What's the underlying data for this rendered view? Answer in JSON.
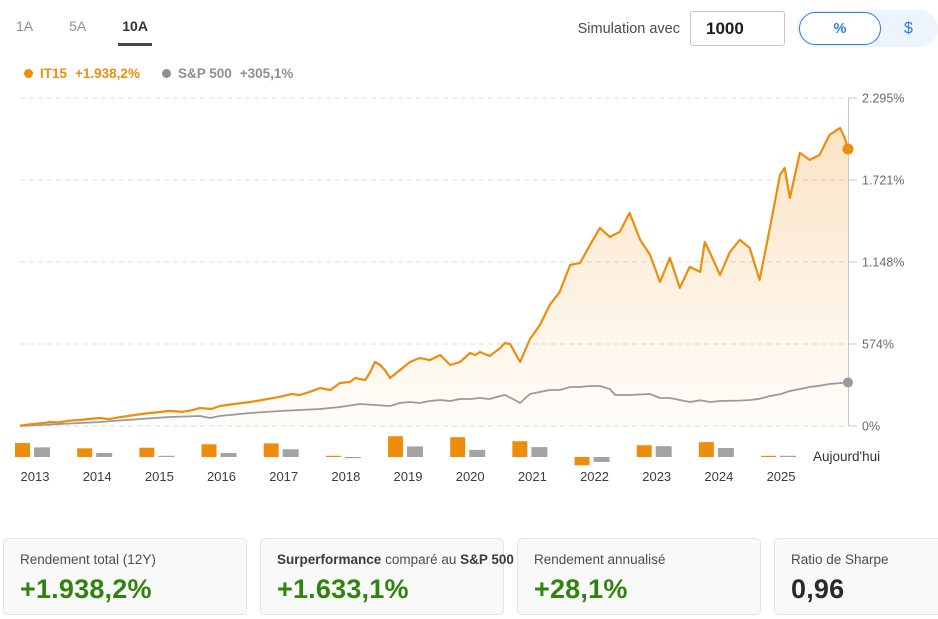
{
  "header": {
    "tabs": [
      {
        "label": "1A",
        "active": false
      },
      {
        "label": "5A",
        "active": false
      },
      {
        "label": "10A",
        "active": true
      }
    ],
    "simulation_label": "Simulation avec",
    "amount_value": "1000",
    "unit_toggle": {
      "percent": "%",
      "dollar": "$",
      "selected": "percent"
    }
  },
  "legend": {
    "series": [
      {
        "name": "IT15",
        "change": "+1.938,2%",
        "color": "#ee8d0b"
      },
      {
        "name": "S&P 500",
        "change": "+305,1%",
        "color": "#8f8f8f"
      }
    ]
  },
  "chart_data": {
    "type": "line",
    "xlabel": "",
    "ylabel": "",
    "xlim": [
      2013.0,
      2025.55
    ],
    "ylim": [
      0,
      2295
    ],
    "grid": "horizontal-dashed",
    "legend_position": "top-left",
    "y_ticks": [
      {
        "value": 2295,
        "label": "2.295%"
      },
      {
        "value": 1721,
        "label": "1.721%"
      },
      {
        "value": 1148,
        "label": "1.148%"
      },
      {
        "value": 574,
        "label": "574%"
      },
      {
        "value": 0,
        "label": "0%"
      }
    ],
    "x_labels": [
      "2013",
      "2014",
      "2015",
      "2016",
      "2017",
      "2018",
      "2019",
      "2020",
      "2021",
      "2022",
      "2023",
      "2024",
      "2025"
    ],
    "today_label": "Aujourd'hui",
    "series": [
      {
        "name": "IT15",
        "color": "#ee8d0b",
        "end_value_pct": 1938.2,
        "points": [
          [
            2013.0,
            2
          ],
          [
            2013.12,
            10
          ],
          [
            2013.25,
            16
          ],
          [
            2013.37,
            22
          ],
          [
            2013.45,
            28
          ],
          [
            2013.6,
            26
          ],
          [
            2013.75,
            38
          ],
          [
            2013.91,
            42
          ],
          [
            2014.06,
            50
          ],
          [
            2014.21,
            56
          ],
          [
            2014.35,
            48
          ],
          [
            2014.52,
            62
          ],
          [
            2014.75,
            78
          ],
          [
            2014.97,
            91
          ],
          [
            2015.12,
            98
          ],
          [
            2015.27,
            106
          ],
          [
            2015.45,
            99
          ],
          [
            2015.6,
            110
          ],
          [
            2015.73,
            126
          ],
          [
            2015.9,
            119
          ],
          [
            2016.03,
            140
          ],
          [
            2016.25,
            154
          ],
          [
            2016.49,
            168
          ],
          [
            2016.64,
            180
          ],
          [
            2016.79,
            192
          ],
          [
            2016.94,
            204
          ],
          [
            2017.12,
            224
          ],
          [
            2017.24,
            216
          ],
          [
            2017.4,
            240
          ],
          [
            2017.55,
            266
          ],
          [
            2017.7,
            251
          ],
          [
            2017.85,
            301
          ],
          [
            2018.0,
            308
          ],
          [
            2018.08,
            336
          ],
          [
            2018.23,
            321
          ],
          [
            2018.3,
            371
          ],
          [
            2018.38,
            448
          ],
          [
            2018.46,
            427
          ],
          [
            2018.53,
            392
          ],
          [
            2018.61,
            336
          ],
          [
            2018.76,
            392
          ],
          [
            2018.91,
            448
          ],
          [
            2019.06,
            476
          ],
          [
            2019.21,
            461
          ],
          [
            2019.37,
            497
          ],
          [
            2019.52,
            427
          ],
          [
            2019.67,
            448
          ],
          [
            2019.82,
            511
          ],
          [
            2019.9,
            497
          ],
          [
            2019.97,
            518
          ],
          [
            2020.12,
            490
          ],
          [
            2020.28,
            546
          ],
          [
            2020.35,
            581
          ],
          [
            2020.43,
            573
          ],
          [
            2020.58,
            448
          ],
          [
            2020.73,
            609
          ],
          [
            2020.88,
            707
          ],
          [
            2021.03,
            847
          ],
          [
            2021.18,
            938
          ],
          [
            2021.34,
            1127
          ],
          [
            2021.49,
            1141
          ],
          [
            2021.64,
            1267
          ],
          [
            2021.79,
            1386
          ],
          [
            2021.94,
            1323
          ],
          [
            2022.09,
            1358
          ],
          [
            2022.24,
            1491
          ],
          [
            2022.4,
            1302
          ],
          [
            2022.55,
            1197
          ],
          [
            2022.7,
            1008
          ],
          [
            2022.85,
            1176
          ],
          [
            2023.0,
            966
          ],
          [
            2023.15,
            1113
          ],
          [
            2023.31,
            1078
          ],
          [
            2023.38,
            1288
          ],
          [
            2023.46,
            1211
          ],
          [
            2023.61,
            1057
          ],
          [
            2023.76,
            1218
          ],
          [
            2023.91,
            1302
          ],
          [
            2024.06,
            1246
          ],
          [
            2024.21,
            1022
          ],
          [
            2024.37,
            1393
          ],
          [
            2024.52,
            1757
          ],
          [
            2024.59,
            1806
          ],
          [
            2024.67,
            1596
          ],
          [
            2024.82,
            1911
          ],
          [
            2024.97,
            1862
          ],
          [
            2025.12,
            1897
          ],
          [
            2025.27,
            2037
          ],
          [
            2025.43,
            2086
          ],
          [
            2025.5,
            2016
          ],
          [
            2025.55,
            1938
          ]
        ]
      },
      {
        "name": "S&P 500",
        "color": "#9a9a9a",
        "end_value_pct": 305.1,
        "points": [
          [
            2013.0,
            0
          ],
          [
            2013.61,
            14
          ],
          [
            2014.21,
            28
          ],
          [
            2014.82,
            49
          ],
          [
            2015.27,
            63
          ],
          [
            2015.73,
            70
          ],
          [
            2015.88,
            56
          ],
          [
            2016.03,
            70
          ],
          [
            2016.49,
            91
          ],
          [
            2016.94,
            105
          ],
          [
            2017.24,
            112
          ],
          [
            2017.55,
            119
          ],
          [
            2017.85,
            133
          ],
          [
            2018.15,
            154
          ],
          [
            2018.38,
            147
          ],
          [
            2018.61,
            140
          ],
          [
            2018.76,
            161
          ],
          [
            2018.91,
            168
          ],
          [
            2019.06,
            161
          ],
          [
            2019.21,
            175
          ],
          [
            2019.37,
            182
          ],
          [
            2019.52,
            175
          ],
          [
            2019.67,
            189
          ],
          [
            2019.82,
            189
          ],
          [
            2019.97,
            196
          ],
          [
            2020.12,
            189
          ],
          [
            2020.28,
            210
          ],
          [
            2020.35,
            217
          ],
          [
            2020.5,
            182
          ],
          [
            2020.58,
            161
          ],
          [
            2020.66,
            196
          ],
          [
            2020.73,
            224
          ],
          [
            2020.88,
            238
          ],
          [
            2021.03,
            252
          ],
          [
            2021.18,
            252
          ],
          [
            2021.34,
            273
          ],
          [
            2021.49,
            273
          ],
          [
            2021.64,
            280
          ],
          [
            2021.79,
            280
          ],
          [
            2021.94,
            259
          ],
          [
            2022.02,
            217
          ],
          [
            2022.24,
            217
          ],
          [
            2022.55,
            224
          ],
          [
            2022.7,
            196
          ],
          [
            2022.85,
            196
          ],
          [
            2023.15,
            168
          ],
          [
            2023.31,
            180
          ],
          [
            2023.46,
            168
          ],
          [
            2023.61,
            175
          ],
          [
            2023.91,
            178
          ],
          [
            2024.06,
            182
          ],
          [
            2024.21,
            190
          ],
          [
            2024.37,
            210
          ],
          [
            2024.52,
            222
          ],
          [
            2024.67,
            245
          ],
          [
            2024.82,
            258
          ],
          [
            2024.97,
            273
          ],
          [
            2025.12,
            282
          ],
          [
            2025.27,
            294
          ],
          [
            2025.43,
            300
          ],
          [
            2025.55,
            305
          ]
        ]
      }
    ],
    "annual_returns": {
      "years": [
        "2013",
        "2014",
        "2015",
        "2016",
        "2017",
        "2018",
        "2019",
        "2020",
        "2021",
        "2022",
        "2023",
        "2024",
        "2025"
      ],
      "it15": [
        45,
        28,
        30,
        41,
        44,
        4,
        67,
        64,
        51,
        -27,
        38,
        48,
        2
      ],
      "sp500": [
        31,
        13,
        3,
        13,
        25,
        -2,
        34,
        23,
        32,
        -16,
        35,
        29,
        2
      ]
    }
  },
  "cards": [
    {
      "label": "Rendement total (12Y)",
      "value": "+1.938,2%",
      "value_color": "green"
    },
    {
      "label_parts": [
        "Surperformance",
        "comparé au",
        "S&P 500"
      ],
      "value": "+1.633,1%",
      "value_color": "green"
    },
    {
      "label": "Rendement annualisé",
      "value": "+28,1%",
      "value_color": "green"
    },
    {
      "label": "Ratio de Sharpe",
      "value": "0,96",
      "value_color": "dark"
    }
  ],
  "colors": {
    "accent_orange": "#ee8d0b",
    "series_gray": "#9a9a9a",
    "positive_green": "#318310",
    "toggle_blue": "#2b7be4",
    "grid": "#dcdcdc"
  }
}
